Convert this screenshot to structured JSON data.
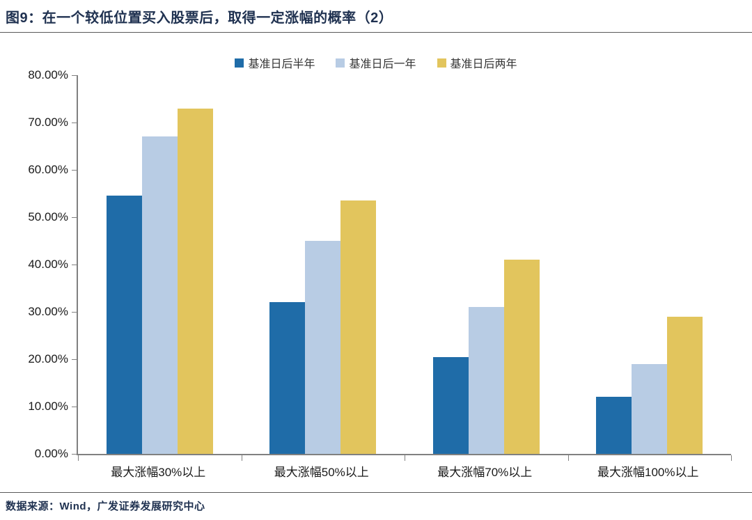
{
  "header": {
    "title": "图9：在一个较低位置买入股票后，取得一定涨幅的概率（2）"
  },
  "footer": {
    "source": "数据来源：Wind，广发证券发展研究中心"
  },
  "colors": {
    "title_text": "#1F3150",
    "axis_line": "#808080",
    "divider": "#595959",
    "series_half_year": "#1F6CA8",
    "series_one_year": "#B8CCE4",
    "series_two_year": "#E2C55D"
  },
  "chart_data": {
    "type": "bar",
    "title": "在一个较低位置买入股票后，取得一定涨幅的概率（2）",
    "categories": [
      "最大涨幅30%以上",
      "最大涨幅50%以上",
      "最大涨幅70%以上",
      "最大涨幅100%以上"
    ],
    "series": [
      {
        "name": "基准日后半年",
        "color": "#1F6CA8",
        "values": [
          54.5,
          32,
          20.5,
          12
        ]
      },
      {
        "name": "基准日后一年",
        "color": "#B8CCE4",
        "values": [
          67,
          45,
          31,
          19
        ]
      },
      {
        "name": "基准日后两年",
        "color": "#E2C55D",
        "values": [
          73,
          53.5,
          41,
          29
        ]
      }
    ],
    "xlabel": "",
    "ylabel": "",
    "ylim": [
      0,
      80
    ],
    "ytick_values": [
      80,
      70,
      60,
      50,
      40,
      30,
      20,
      10,
      0
    ],
    "ytick_labels": [
      "80.00%",
      "70.00%",
      "60.00%",
      "50.00%",
      "40.00%",
      "30.00%",
      "20.00%",
      "10.00%",
      "0.00%"
    ],
    "grid": false,
    "legend_position": "top-center"
  }
}
